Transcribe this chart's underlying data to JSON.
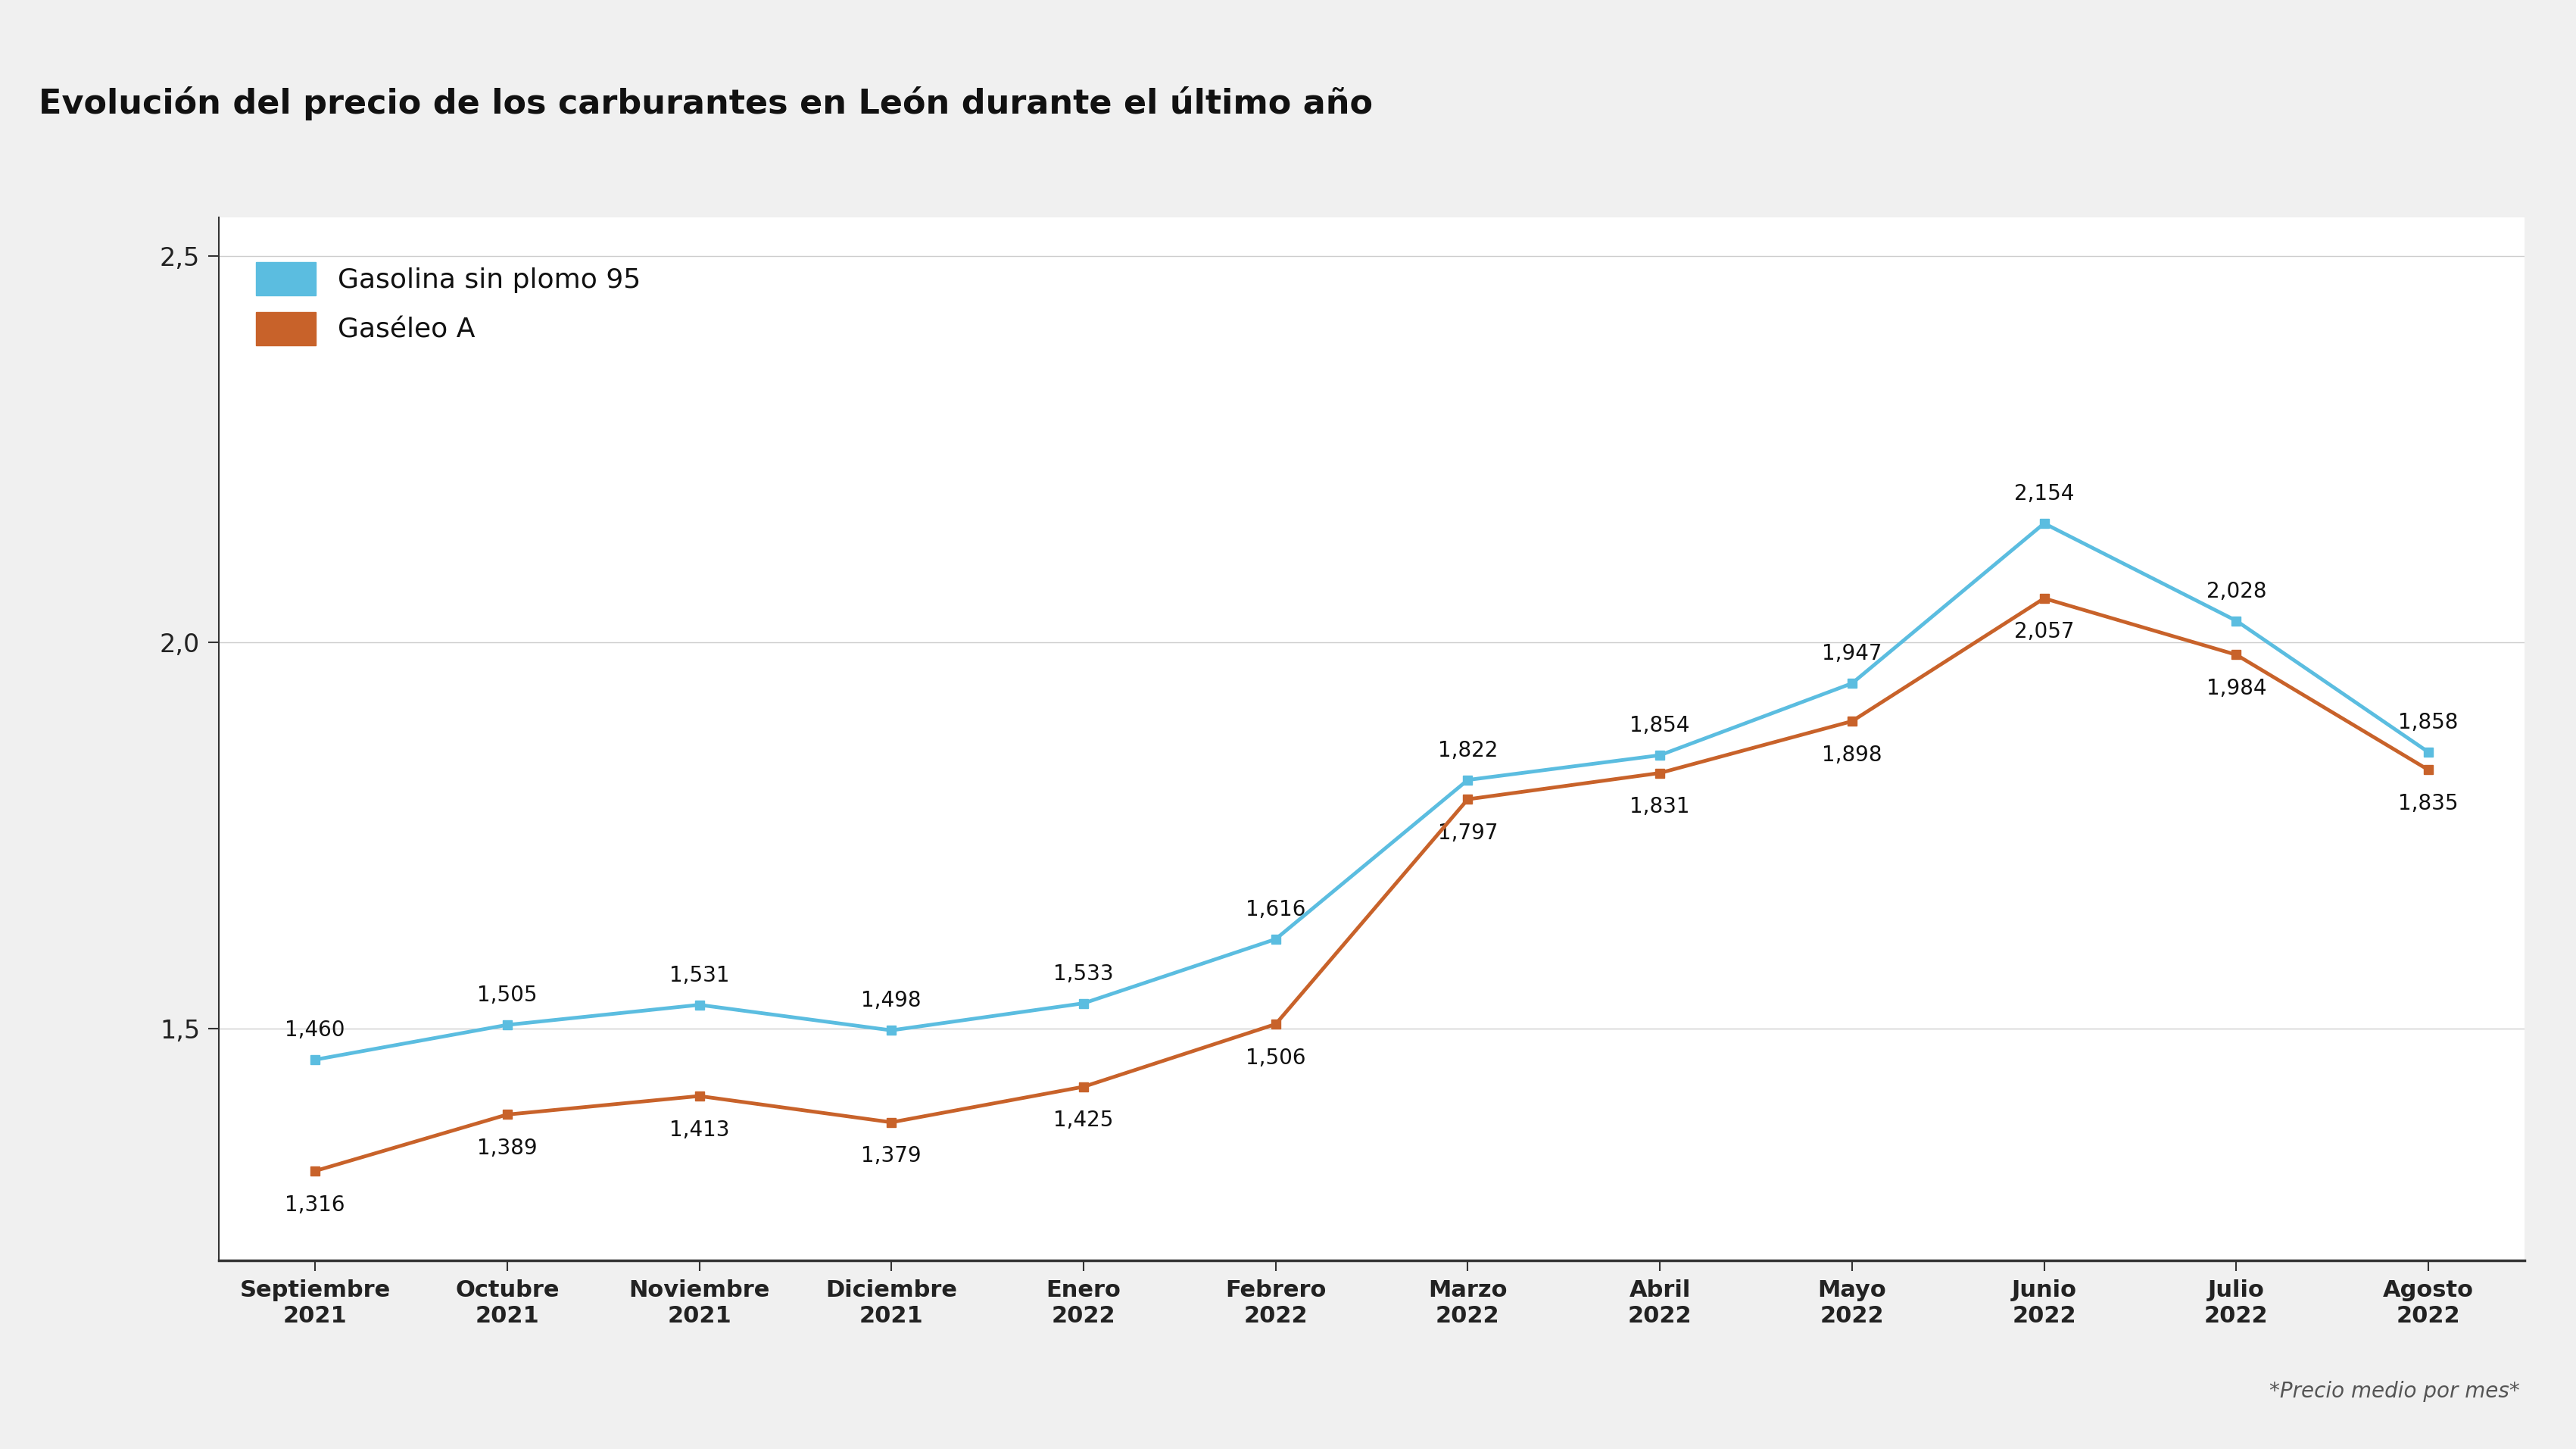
{
  "title": "Evolución del precio de los carburantes en León durante el último año",
  "background_color": "#f0f0f0",
  "plot_background": "#ffffff",
  "title_band_color": "#e8e8e8",
  "categories": [
    "Septiembre\n2021",
    "Octubre\n2021",
    "Noviembre\n2021",
    "Diciembre\n2021",
    "Enero\n2022",
    "Febrero\n2022",
    "Marzo\n2022",
    "Abril\n2022",
    "Mayo\n2022",
    "Junio\n2022",
    "Julio\n2022",
    "Agosto\n2022"
  ],
  "gasolina": [
    1.46,
    1.505,
    1.531,
    1.498,
    1.533,
    1.616,
    1.822,
    1.854,
    1.947,
    2.154,
    2.028,
    1.858
  ],
  "gasoleo": [
    1.316,
    1.389,
    1.413,
    1.379,
    1.425,
    1.506,
    1.797,
    1.831,
    1.898,
    2.057,
    1.984,
    1.835
  ],
  "gasolina_labels": [
    "1,460",
    "1,505",
    "1,531",
    "1,498",
    "1,533",
    "1,616",
    "1,822",
    "1,854",
    "1,947",
    "2,154",
    "2,028",
    "1,858"
  ],
  "gasoleo_labels": [
    "1,316",
    "1,389",
    "1,413",
    "1,379",
    "1,425",
    "1,506",
    "1,797",
    "1,831",
    "1,898",
    "2,057",
    "1,984",
    "1,835"
  ],
  "gasolina_color": "#5bbde0",
  "gasoleo_color": "#c8622a",
  "ylim": [
    1.2,
    2.55
  ],
  "yticks": [
    1.5,
    2.0,
    2.5
  ],
  "ytick_labels": [
    "1,5",
    "2,0",
    "2,5"
  ],
  "legend_gasolina": "Gasolina sin plomo 95",
  "legend_gasoleo": "Gaséleo A",
  "annotation": "*Precio medio por mes*",
  "title_fontsize": 32,
  "label_fontsize": 20,
  "tick_fontsize": 22,
  "legend_fontsize": 26
}
